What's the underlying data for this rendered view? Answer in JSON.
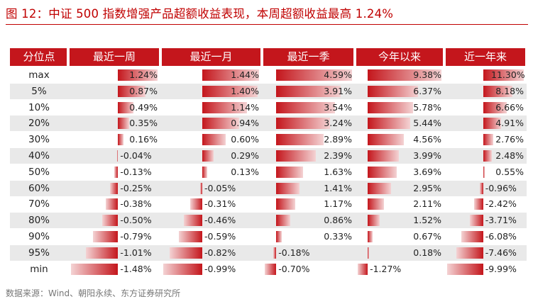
{
  "title": "图 12：中证 500 指数增强产品超额收益表现，本周超额收益最高 1.24%",
  "source": "数据来源：Wind、朝阳永续、东方证券研究所",
  "colors": {
    "accent": "#c4161c",
    "bar_dark": "#c4161c",
    "bar_light": "#f4d3d4",
    "stripe": "#e9e9e9"
  },
  "chart_data": {
    "type": "table",
    "header": [
      "分位点",
      "最近一周",
      "最近一月",
      "最近一季",
      "今年以来",
      "近一年来"
    ],
    "rows": [
      "max",
      "5%",
      "10%",
      "20%",
      "30%",
      "40%",
      "50%",
      "60%",
      "70%",
      "80%",
      "90%",
      "95%",
      "min"
    ],
    "series": [
      {
        "name": "最近一周",
        "values": [
          1.24,
          0.87,
          0.49,
          0.35,
          0.16,
          -0.04,
          -0.13,
          -0.25,
          -0.38,
          -0.5,
          -0.79,
          -1.01,
          -1.48
        ]
      },
      {
        "name": "最近一月",
        "values": [
          1.44,
          1.4,
          1.14,
          0.94,
          0.6,
          0.29,
          0.13,
          -0.05,
          -0.31,
          -0.46,
          -0.59,
          -0.82,
          -0.99
        ]
      },
      {
        "name": "最近一季",
        "values": [
          4.59,
          3.91,
          3.54,
          3.24,
          2.89,
          2.39,
          1.63,
          1.41,
          1.17,
          0.86,
          0.33,
          -0.18,
          -0.7
        ]
      },
      {
        "name": "今年以来",
        "values": [
          9.38,
          6.37,
          5.78,
          5.44,
          4.56,
          3.99,
          3.69,
          2.95,
          2.11,
          1.52,
          0.67,
          0.18,
          -1.27
        ]
      },
      {
        "name": "近一年来",
        "values": [
          11.3,
          8.18,
          6.66,
          4.91,
          2.76,
          2.48,
          0.55,
          -0.96,
          -2.42,
          -3.71,
          -6.08,
          -7.46,
          -9.99
        ]
      }
    ],
    "value_format": "percent_2dp"
  }
}
